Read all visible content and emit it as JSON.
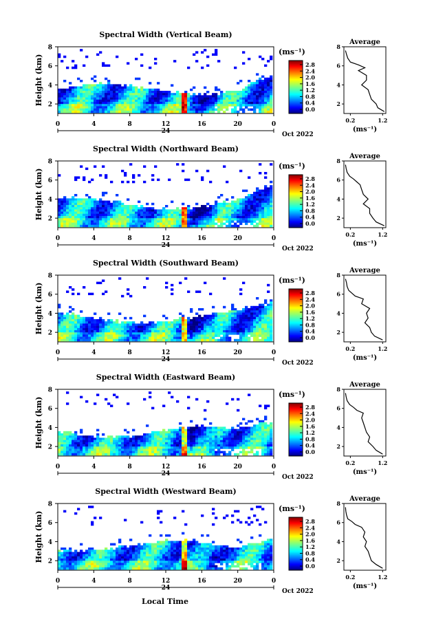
{
  "figure": {
    "common_xlabel": "Local Time",
    "day_label": "24",
    "month_label": "Oct 2022",
    "colorbar_unit": "(ms⁻¹)",
    "profile_title": "Average",
    "profile_xlabel": "(ms⁻¹)"
  },
  "chart_data": [
    {
      "type": "heatmap",
      "title": "Spectral Width (Vertical Beam)",
      "xlabel": "",
      "ylabel": "Height (km)",
      "x_ticks": [
        "0",
        "4",
        "8",
        "12",
        "16",
        "20",
        "0"
      ],
      "y_ticks": [
        "2",
        "4",
        "6",
        "8"
      ],
      "xlim": [
        0,
        24
      ],
      "ylim": [
        1,
        8
      ],
      "colorbar": {
        "unit": "ms-1",
        "ticks": [
          "2.8",
          "2.4",
          "2.0",
          "1.6",
          "1.2",
          "0.8",
          "0.4",
          "0.0"
        ],
        "range": [
          0,
          2.8
        ]
      },
      "profile": {
        "title": "Average",
        "x_ticks": [
          "0.2",
          "1.2"
        ],
        "y_ticks": [
          "2",
          "4",
          "6",
          "8"
        ],
        "xlim": [
          0,
          1.3
        ],
        "ylim": [
          1,
          8
        ],
        "height_km": [
          1.2,
          1.6,
          2.0,
          2.5,
          3.0,
          3.5,
          4.0,
          4.5,
          5.0,
          5.5,
          5.8,
          6.1,
          6.4,
          6.8,
          7.2,
          7.6
        ],
        "value": [
          1.25,
          1.05,
          1.0,
          0.85,
          0.8,
          0.75,
          0.55,
          0.7,
          0.7,
          0.45,
          0.65,
          0.45,
          0.2,
          0.12,
          0.08,
          0.05
        ]
      }
    },
    {
      "type": "heatmap",
      "title": "Spectral Width (Northward Beam)",
      "xlabel": "",
      "ylabel": "Height (km)",
      "x_ticks": [
        "0",
        "4",
        "8",
        "12",
        "16",
        "20",
        "0"
      ],
      "y_ticks": [
        "2",
        "4",
        "6",
        "8"
      ],
      "xlim": [
        0,
        24
      ],
      "ylim": [
        1,
        8
      ],
      "colorbar": {
        "unit": "ms-1",
        "ticks": [
          "2.8",
          "2.4",
          "2.0",
          "1.6",
          "1.2",
          "0.8",
          "0.4",
          "0.0"
        ],
        "range": [
          0,
          2.8
        ]
      },
      "profile": {
        "title": "Average",
        "x_ticks": [
          "0.2",
          "1.2"
        ],
        "y_ticks": [
          "2",
          "4",
          "6",
          "8"
        ],
        "xlim": [
          0,
          1.3
        ],
        "ylim": [
          1,
          8
        ],
        "height_km": [
          1.2,
          1.6,
          2.0,
          2.5,
          3.0,
          3.5,
          4.0,
          4.5,
          5.0,
          5.5,
          5.8,
          6.1,
          6.4,
          6.8,
          7.2,
          7.6
        ],
        "value": [
          1.25,
          1.0,
          0.9,
          0.8,
          0.8,
          0.6,
          0.75,
          0.6,
          0.55,
          0.5,
          0.4,
          0.3,
          0.18,
          0.1,
          0.07,
          0.05
        ]
      }
    },
    {
      "type": "heatmap",
      "title": "Spectral Width (Southward Beam)",
      "xlabel": "",
      "ylabel": "Height (km)",
      "x_ticks": [
        "0",
        "4",
        "8",
        "12",
        "16",
        "20",
        "0"
      ],
      "y_ticks": [
        "2",
        "4",
        "6",
        "8"
      ],
      "xlim": [
        0,
        24
      ],
      "ylim": [
        1,
        8
      ],
      "colorbar": {
        "unit": "ms-1",
        "ticks": [
          "2.8",
          "2.4",
          "2.0",
          "1.6",
          "1.2",
          "0.8",
          "0.4",
          "0.0"
        ],
        "range": [
          0,
          2.8
        ]
      },
      "profile": {
        "title": "Average",
        "x_ticks": [
          "0.2",
          "1.2"
        ],
        "y_ticks": [
          "2",
          "4",
          "6",
          "8"
        ],
        "xlim": [
          0,
          1.3
        ],
        "ylim": [
          1,
          8
        ],
        "height_km": [
          1.2,
          1.6,
          2.0,
          2.5,
          3.0,
          3.5,
          4.0,
          4.5,
          5.0,
          5.5,
          5.8,
          6.1,
          6.4,
          6.8,
          7.2,
          7.6
        ],
        "value": [
          1.2,
          0.95,
          0.85,
          0.8,
          0.65,
          0.75,
          0.7,
          0.8,
          0.55,
          0.6,
          0.35,
          0.25,
          0.15,
          0.1,
          0.08,
          0.05
        ]
      }
    },
    {
      "type": "heatmap",
      "title": "Spectral Width (Eastward Beam)",
      "xlabel": "",
      "ylabel": "Height (km)",
      "x_ticks": [
        "0",
        "4",
        "8",
        "12",
        "16",
        "20",
        "0"
      ],
      "y_ticks": [
        "2",
        "4",
        "6",
        "8"
      ],
      "xlim": [
        0,
        24
      ],
      "ylim": [
        1,
        8
      ],
      "colorbar": {
        "unit": "ms-1",
        "ticks": [
          "2.8",
          "2.4",
          "2.0",
          "1.6",
          "1.2",
          "0.8",
          "0.4",
          "0.0"
        ],
        "range": [
          0,
          2.8
        ]
      },
      "profile": {
        "title": "Average",
        "x_ticks": [
          "0.2",
          "1.2"
        ],
        "y_ticks": [
          "2",
          "4",
          "6",
          "8"
        ],
        "xlim": [
          0,
          1.3
        ],
        "ylim": [
          1,
          8
        ],
        "height_km": [
          1.2,
          1.6,
          2.0,
          2.5,
          3.0,
          3.5,
          4.0,
          4.5,
          5.0,
          5.5,
          5.8,
          6.1,
          6.4,
          6.8,
          7.2,
          7.6
        ],
        "value": [
          1.2,
          1.0,
          0.9,
          0.75,
          0.8,
          0.7,
          0.65,
          0.6,
          0.55,
          0.6,
          0.4,
          0.3,
          0.18,
          0.1,
          0.07,
          0.05
        ]
      }
    },
    {
      "type": "heatmap",
      "title": "Spectral Width (Westward Beam)",
      "xlabel": "Local Time",
      "ylabel": "Height (km)",
      "x_ticks": [
        "0",
        "4",
        "8",
        "12",
        "16",
        "20",
        "0"
      ],
      "y_ticks": [
        "2",
        "4",
        "6",
        "8"
      ],
      "xlim": [
        0,
        24
      ],
      "ylim": [
        1,
        8
      ],
      "colorbar": {
        "unit": "ms-1",
        "ticks": [
          "2.8",
          "2.4",
          "2.0",
          "1.6",
          "1.2",
          "0.8",
          "0.4",
          "0.0"
        ],
        "range": [
          0,
          2.8
        ]
      },
      "profile": {
        "title": "Average",
        "x_ticks": [
          "0.2",
          "1.2"
        ],
        "y_ticks": [
          "2",
          "4",
          "6",
          "8"
        ],
        "xlim": [
          0,
          1.3
        ],
        "ylim": [
          1,
          8
        ],
        "height_km": [
          1.2,
          1.6,
          2.0,
          2.5,
          3.0,
          3.5,
          4.0,
          4.5,
          5.0,
          5.5,
          5.8,
          6.1,
          6.4,
          6.8,
          7.2,
          7.6
        ],
        "value": [
          1.2,
          1.0,
          0.85,
          0.8,
          0.75,
          0.65,
          0.7,
          0.6,
          0.65,
          0.55,
          0.35,
          0.25,
          0.12,
          0.08,
          0.06,
          0.05
        ]
      }
    }
  ]
}
